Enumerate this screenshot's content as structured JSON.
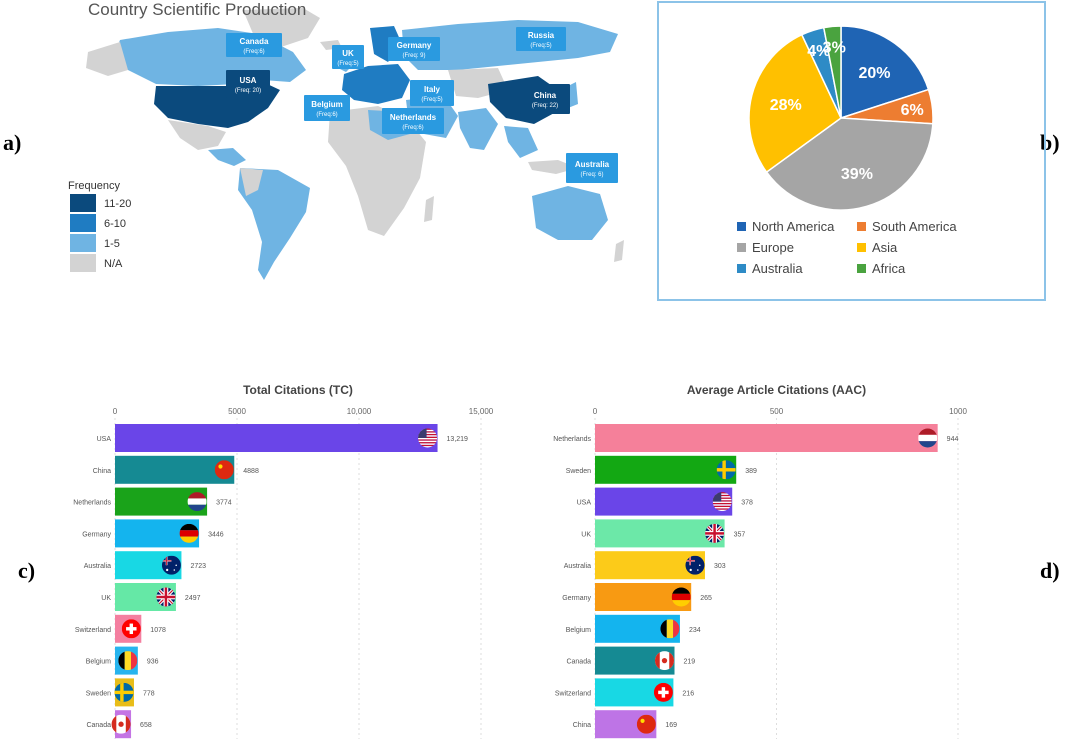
{
  "panel_labels": {
    "a": "a)",
    "b": "b)",
    "c": "c)",
    "d": "d)"
  },
  "map": {
    "title": "Country Scientific Production",
    "legend_title": "Frequency",
    "legend": [
      {
        "label": "11-20",
        "color": "#0b4a7d"
      },
      {
        "label": "6-10",
        "color": "#1f7cc2"
      },
      {
        "label": "1-5",
        "color": "#6fb4e3"
      },
      {
        "label": "N/A",
        "color": "#d3d3d3"
      }
    ],
    "callouts": [
      {
        "name": "Canada",
        "freq": "(Freq:6)"
      },
      {
        "name": "UK",
        "freq": "(Freq:5)"
      },
      {
        "name": "Germany",
        "freq": "(Freq: 9)"
      },
      {
        "name": "Russia",
        "freq": "(Freq:5)"
      },
      {
        "name": "USA",
        "freq": "(Freq: 20)"
      },
      {
        "name": "Belgium",
        "freq": "(Freq:6)"
      },
      {
        "name": "Italy",
        "freq": "(Freq:5)"
      },
      {
        "name": "Netherlands",
        "freq": "(Freq:6)"
      },
      {
        "name": "China",
        "freq": "(Freq: 22)"
      },
      {
        "name": "Australia",
        "freq": "(Freq: 6)"
      }
    ]
  },
  "chart_data": [
    {
      "type": "pie",
      "labels": [
        "North America",
        "South America",
        "Europe",
        "Asia",
        "Australia",
        "Africa"
      ],
      "values": [
        20,
        6,
        39,
        28,
        4,
        3
      ],
      "value_labels": [
        "20%",
        "6%",
        "39%",
        "28%",
        "4%",
        "3%"
      ],
      "colors": [
        "#1f64b4",
        "#ed7d31",
        "#a5a5a5",
        "#ffc000",
        "#2e8bc6",
        "#4aa33f"
      ],
      "legend_position": "bottom"
    },
    {
      "type": "bar",
      "title": "Total Citations (TC)",
      "categories": [
        "USA",
        "China",
        "Netherlands",
        "Germany",
        "Australia",
        "UK",
        "Switzerland",
        "Belgium",
        "Sweden",
        "Canada"
      ],
      "values": [
        13219,
        4888,
        3774,
        3446,
        2723,
        2497,
        1078,
        936,
        778,
        658
      ],
      "value_labels": [
        "13,219",
        "4888",
        "3774",
        "3446",
        "2723",
        "2497",
        "1078",
        "936",
        "778",
        "658"
      ],
      "colors": [
        "#6a45e8",
        "#158a93",
        "#1aa31a",
        "#14b4ee",
        "#18d8e4",
        "#65e8a6",
        "#f47fa0",
        "#27b4ee",
        "#e8bd18",
        "#c474e4"
      ],
      "flags": [
        "usa-flag-icon",
        "china-flag-icon",
        "netherlands-flag-icon",
        "germany-flag-icon",
        "australia-flag-icon",
        "uk-flag-icon",
        "switzerland-flag-icon",
        "belgium-flag-icon",
        "sweden-flag-icon",
        "canada-flag-icon"
      ],
      "xlim": [
        0,
        15000
      ],
      "xticks": [
        "0",
        "5000",
        "10,000",
        "15,000"
      ],
      "grid": true
    },
    {
      "type": "bar",
      "title": "Average Article Citations (AAC)",
      "categories": [
        "Netherlands",
        "Sweden",
        "USA",
        "UK",
        "Australia",
        "Germany",
        "Belgium",
        "Canada",
        "Switzerland",
        "China"
      ],
      "values": [
        944,
        389,
        378,
        357,
        303,
        265,
        234,
        219,
        216,
        169
      ],
      "value_labels": [
        "944",
        "389",
        "378",
        "357",
        "303",
        "265",
        "234",
        "219",
        "216",
        "169"
      ],
      "colors": [
        "#f5809a",
        "#13a813",
        "#6a45e8",
        "#6ce8a8",
        "#fccb19",
        "#f89a12",
        "#14b4ee",
        "#158a93",
        "#18d8e4",
        "#be74e6"
      ],
      "flags": [
        "netherlands-flag-icon",
        "sweden-flag-icon",
        "usa-flag-icon",
        "uk-flag-icon",
        "australia-flag-icon",
        "germany-flag-icon",
        "belgium-flag-icon",
        "canada-flag-icon",
        "switzerland-flag-icon",
        "china-flag-icon"
      ],
      "xlim": [
        0,
        1000
      ],
      "xticks": [
        "0",
        "500",
        "1000"
      ],
      "grid": true
    }
  ]
}
